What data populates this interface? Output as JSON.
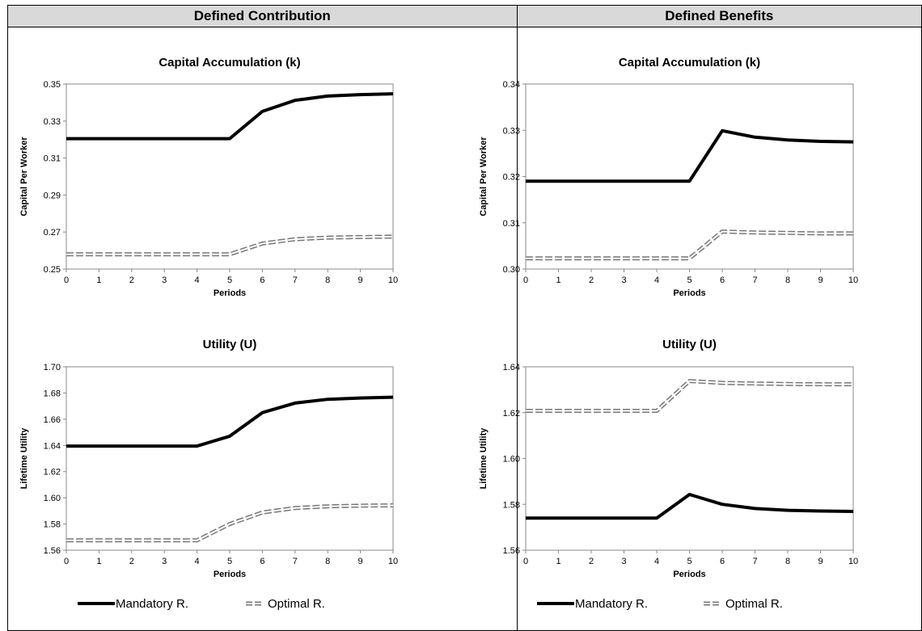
{
  "columns": [
    "Defined Contribution",
    "Defined Benefits"
  ],
  "legend": {
    "mandatory": "Mandatory R.",
    "optimal": "Optimal R."
  },
  "chart_data": [
    {
      "id": "dc-k",
      "panel": "Defined Contribution",
      "type": "line",
      "title": "Capital Accumulation (k)",
      "xlabel": "Periods",
      "ylabel": "Capital Per Worker",
      "x": [
        0,
        1,
        2,
        3,
        4,
        5,
        6,
        7,
        8,
        9,
        10
      ],
      "ylim": [
        0.25,
        0.35
      ],
      "yticks": [
        0.25,
        0.27,
        0.29,
        0.31,
        0.33,
        0.35
      ],
      "ydecimals": 2,
      "series": [
        {
          "name": "Mandatory R.",
          "style": "solid",
          "values": [
            0.3205,
            0.3205,
            0.3205,
            0.3205,
            0.3205,
            0.3205,
            0.3352,
            0.3412,
            0.3435,
            0.3443,
            0.3447
          ]
        },
        {
          "name": "Optimal R.",
          "style": "dashed",
          "values": [
            0.258,
            0.258,
            0.258,
            0.258,
            0.258,
            0.258,
            0.2638,
            0.2661,
            0.267,
            0.2673,
            0.2675
          ]
        }
      ]
    },
    {
      "id": "db-k",
      "panel": "Defined Benefits",
      "type": "line",
      "title": "Capital Accumulation (k)",
      "xlabel": "Periods",
      "ylabel": "Capital Per Worker",
      "x": [
        0,
        1,
        2,
        3,
        4,
        5,
        6,
        7,
        8,
        9,
        10
      ],
      "ylim": [
        0.3,
        0.34
      ],
      "yticks": [
        0.3,
        0.31,
        0.32,
        0.33,
        0.34
      ],
      "ydecimals": 2,
      "series": [
        {
          "name": "Mandatory R.",
          "style": "solid",
          "values": [
            0.319,
            0.319,
            0.319,
            0.319,
            0.319,
            0.319,
            0.3299,
            0.3285,
            0.3279,
            0.3276,
            0.3275
          ]
        },
        {
          "name": "Optimal R.",
          "style": "dashed",
          "values": [
            0.3023,
            0.3023,
            0.3023,
            0.3023,
            0.3023,
            0.3023,
            0.3081,
            0.3079,
            0.3078,
            0.3077,
            0.3077
          ]
        }
      ]
    },
    {
      "id": "dc-u",
      "panel": "Defined Contribution",
      "type": "line",
      "title": "Utility (U)",
      "xlabel": "Periods",
      "ylabel": "Lifetime Utility",
      "x": [
        0,
        1,
        2,
        3,
        4,
        5,
        6,
        7,
        8,
        9,
        10
      ],
      "ylim": [
        1.56,
        1.7
      ],
      "yticks": [
        1.56,
        1.58,
        1.6,
        1.62,
        1.64,
        1.66,
        1.68,
        1.7
      ],
      "ydecimals": 2,
      "series": [
        {
          "name": "Mandatory R.",
          "style": "solid",
          "values": [
            1.6395,
            1.6395,
            1.6395,
            1.6395,
            1.6395,
            1.647,
            1.665,
            1.6723,
            1.6752,
            1.6762,
            1.6768
          ]
        },
        {
          "name": "Optimal R.",
          "style": "dashed",
          "values": [
            1.5675,
            1.5675,
            1.5675,
            1.5675,
            1.5675,
            1.58,
            1.5888,
            1.5922,
            1.5935,
            1.594,
            1.5942
          ]
        }
      ]
    },
    {
      "id": "db-u",
      "panel": "Defined Benefits",
      "type": "line",
      "title": "Utility (U)",
      "xlabel": "Periods",
      "ylabel": "Lifetime Utility",
      "x": [
        0,
        1,
        2,
        3,
        4,
        5,
        6,
        7,
        8,
        9,
        10
      ],
      "ylim": [
        1.56,
        1.64
      ],
      "yticks": [
        1.56,
        1.58,
        1.6,
        1.62,
        1.64
      ],
      "ydecimals": 2,
      "series": [
        {
          "name": "Mandatory R.",
          "style": "solid",
          "values": [
            1.574,
            1.574,
            1.574,
            1.574,
            1.574,
            1.5843,
            1.58,
            1.5782,
            1.5774,
            1.5771,
            1.5769
          ]
        },
        {
          "name": "Optimal R.",
          "style": "dashed",
          "values": [
            1.6208,
            1.6208,
            1.6208,
            1.6208,
            1.6208,
            1.6338,
            1.633,
            1.6327,
            1.6325,
            1.6324,
            1.6324
          ]
        }
      ]
    }
  ]
}
